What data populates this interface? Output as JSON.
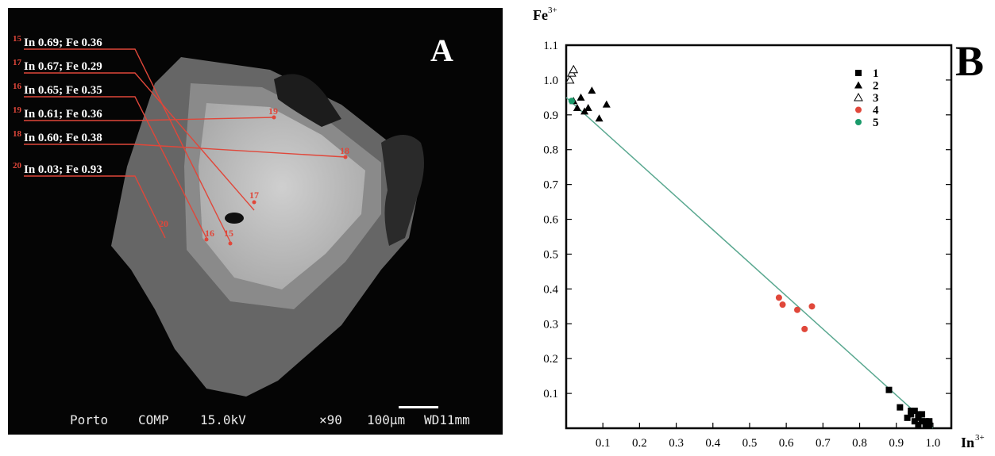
{
  "panelA": {
    "letter": "A",
    "labels": [
      {
        "num": "15",
        "text": "In 0.69; Fe 0.36"
      },
      {
        "num": "17",
        "text": "In 0.67; Fe 0.29"
      },
      {
        "num": "16",
        "text": "In 0.65; Fe 0.35"
      },
      {
        "num": "19",
        "text": "In 0.61; Fe 0.36"
      },
      {
        "num": "18",
        "text": "In 0.60; Fe 0.38"
      },
      {
        "num": "20",
        "text": "In 0.03; Fe 0.93"
      }
    ],
    "point_labels": [
      "19",
      "18",
      "17",
      "20",
      "16",
      "15"
    ],
    "sem_info": {
      "operator": "Porto",
      "mode": "COMP",
      "voltage": "15.0kV",
      "magnification": "×90",
      "scale": "100µm",
      "working_distance": "WD11mm"
    }
  },
  "chart_data": {
    "type": "scatter",
    "panel_letter": "B",
    "xlabel": "In",
    "xlabel_sup": "3+",
    "ylabel": "Fe",
    "ylabel_sup": "3+",
    "xlim": [
      0,
      1.05
    ],
    "ylim": [
      0,
      1.1
    ],
    "x_ticks": [
      "0.1",
      "0.2",
      "0.3",
      "0.4",
      "0.5",
      "0.6",
      "0.7",
      "0.8",
      "0.9",
      "1.0"
    ],
    "y_ticks": [
      "0.1",
      "0.2",
      "0.3",
      "0.4",
      "0.5",
      "0.6",
      "0.7",
      "0.8",
      "0.9",
      "1.0",
      "1.1"
    ],
    "series": [
      {
        "name": "1",
        "marker": "square",
        "color": "#000000",
        "x": [
          0.88,
          0.91,
          0.93,
          0.94,
          0.95,
          0.95,
          0.96,
          0.96,
          0.97,
          0.97,
          0.98,
          0.98,
          0.99,
          0.99,
          0.94,
          0.96
        ],
        "y": [
          0.11,
          0.06,
          0.03,
          0.04,
          0.05,
          0.02,
          0.03,
          0.01,
          0.02,
          0.04,
          0.02,
          0.01,
          0.02,
          0.01,
          0.05,
          0.04
        ]
      },
      {
        "name": "2",
        "marker": "triangle",
        "color": "#000000",
        "x": [
          0.02,
          0.04,
          0.05,
          0.07,
          0.09,
          0.11,
          0.06,
          0.03
        ],
        "y": [
          0.94,
          0.95,
          0.91,
          0.97,
          0.89,
          0.93,
          0.92,
          0.92
        ]
      },
      {
        "name": "3",
        "marker": "triangle-open",
        "color": "#000000",
        "x": [
          0.01,
          0.015,
          0.02
        ],
        "y": [
          1.0,
          1.02,
          1.03
        ]
      },
      {
        "name": "4",
        "marker": "circle",
        "color": "#e0473a",
        "x": [
          0.58,
          0.59,
          0.63,
          0.65,
          0.67
        ],
        "y": [
          0.375,
          0.355,
          0.34,
          0.285,
          0.35
        ]
      },
      {
        "name": "5",
        "marker": "circle",
        "color": "#1a9a6a",
        "x": [
          0.015
        ],
        "y": [
          0.94
        ]
      }
    ],
    "trendline": {
      "color": "#5aa890",
      "from": [
        0.0,
        0.95
      ],
      "to": [
        1.0,
        0.0
      ]
    },
    "legend_position": "top-right"
  }
}
